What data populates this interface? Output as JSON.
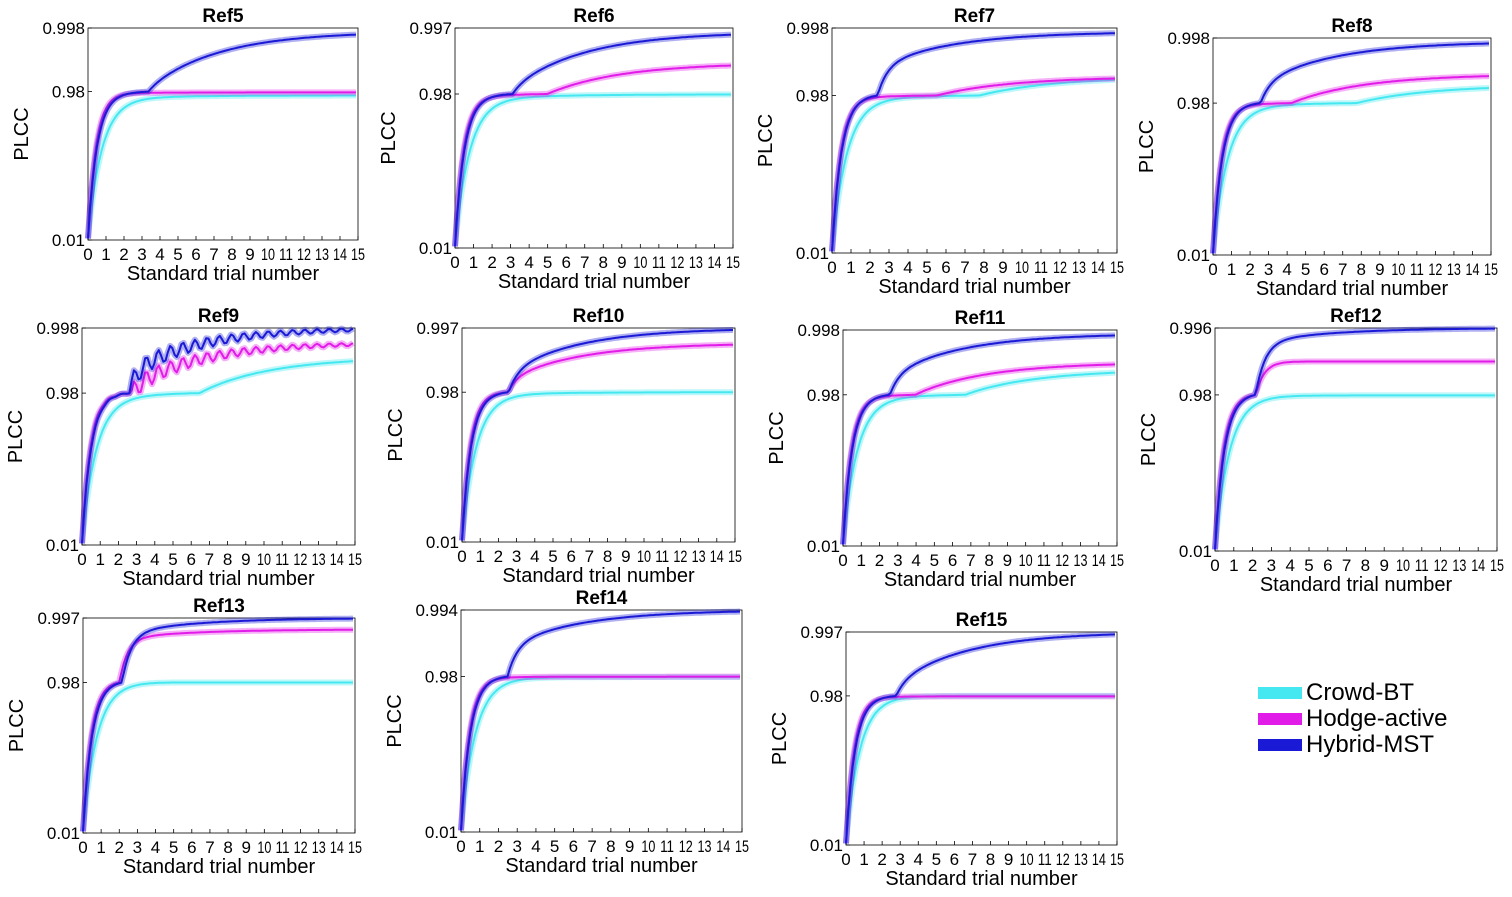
{
  "chart_data": {
    "type": "line",
    "x_ticks": [
      "0",
      "1",
      "2",
      "3",
      "4",
      "5",
      "6",
      "7",
      "8",
      "9",
      "10",
      "11",
      "12",
      "13",
      "14",
      "15"
    ],
    "x_range": [
      0,
      15
    ],
    "xlabel": "Standard trial number",
    "ylabel": "PLCC",
    "legend": {
      "placement": "right",
      "entries": [
        {
          "name": "Crowd-BT",
          "color": "#45e8f0"
        },
        {
          "name": "Hodge-active",
          "color": "#e21ce8"
        },
        {
          "name": "Hybrid-MST",
          "color": "#1a1ad6"
        }
      ]
    },
    "panels": [
      {
        "title": "Ref5",
        "yticks": [
          "0.998",
          "0.98",
          "0.01"
        ],
        "final": [
          0.955,
          0.975,
          0.997
        ],
        "knee": [
          0.93,
          0.97,
          0.96
        ]
      },
      {
        "title": "Ref6",
        "yticks": [
          "0.997",
          "0.98",
          "0.01"
        ],
        "final": [
          0.978,
          0.988,
          0.996
        ],
        "knee": [
          0.94,
          0.96,
          0.965
        ]
      },
      {
        "title": "Ref7",
        "yticks": [
          "0.998",
          "0.98",
          "0.01"
        ],
        "final": [
          0.985,
          0.985,
          0.997
        ],
        "knee": [
          0.95,
          0.965,
          0.98
        ]
      },
      {
        "title": "Ref8",
        "yticks": [
          "0.998",
          "0.98",
          "0.01"
        ],
        "final": [
          0.985,
          0.988,
          0.997
        ],
        "knee": [
          0.95,
          0.965,
          0.975
        ]
      },
      {
        "title": "Ref9",
        "yticks": [
          "0.998",
          "0.98",
          "0.01"
        ],
        "final": [
          0.99,
          0.994,
          0.998
        ],
        "knee": [
          0.94,
          0.97,
          0.975
        ]
      },
      {
        "title": "Ref10",
        "yticks": [
          "0.997",
          "0.98",
          "0.01"
        ],
        "final": [
          0.98,
          0.993,
          0.997
        ],
        "knee": [
          0.96,
          0.975,
          0.975
        ]
      },
      {
        "title": "Ref11",
        "yticks": [
          "0.998",
          "0.98",
          "0.01"
        ],
        "final": [
          0.987,
          0.989,
          0.997
        ],
        "knee": [
          0.95,
          0.965,
          0.975
        ]
      },
      {
        "title": "Ref12",
        "yticks": [
          "0.996",
          "0.98",
          "0.01"
        ],
        "final": [
          0.977,
          0.988,
          0.996
        ],
        "knee": [
          0.975,
          0.988,
          0.99
        ]
      },
      {
        "title": "Ref13",
        "yticks": [
          "0.997",
          "0.98",
          "0.01"
        ],
        "final": [
          0.98,
          0.994,
          0.997
        ],
        "knee": [
          0.985,
          0.99,
          0.99
        ]
      },
      {
        "title": "Ref14",
        "yticks": [
          "0.994",
          "0.98",
          "0.01"
        ],
        "final": [
          0.978,
          0.98,
          0.994
        ],
        "knee": [
          0.97,
          0.975,
          0.98
        ]
      },
      {
        "title": "Ref15",
        "yticks": [
          "0.997",
          "0.98",
          "0.01"
        ],
        "final": [
          0.98,
          0.977,
          0.997
        ],
        "knee": [
          0.98,
          0.975,
          0.97
        ]
      }
    ]
  }
}
